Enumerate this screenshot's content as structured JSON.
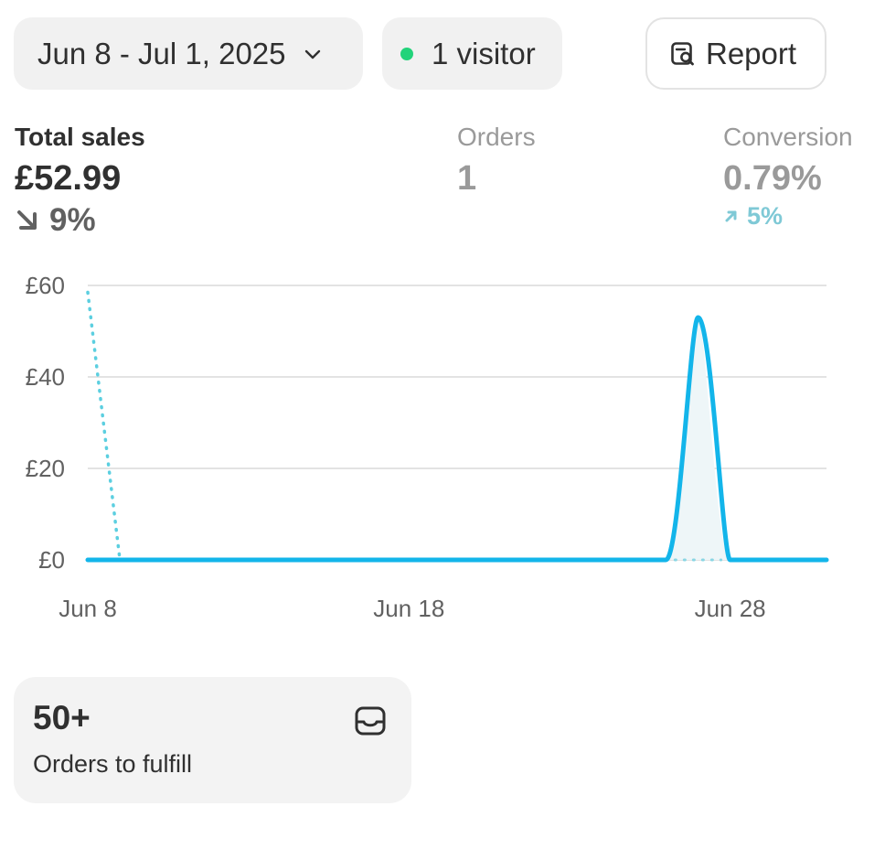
{
  "header": {
    "date_range": "Jun 8 - Jul 1, 2025",
    "visitors": "1 visitor",
    "report_label": "Report",
    "visitor_dot_color": "#22d37a"
  },
  "metrics": {
    "total_sales": {
      "label": "Total sales",
      "value": "£52.99",
      "delta": "9%",
      "direction": "down"
    },
    "orders": {
      "label": "Orders",
      "value": "1"
    },
    "conversion": {
      "label": "Conversion",
      "value": "0.79%",
      "delta": "5%",
      "direction": "up"
    }
  },
  "chart_data": {
    "type": "line",
    "y_ticks": [
      "£60",
      "£40",
      "£20",
      "£0"
    ],
    "x_ticks": [
      "Jun 8",
      "Jun 18",
      "Jun 28"
    ],
    "ylim": [
      0,
      60
    ],
    "grid": true,
    "series": [
      {
        "style": "solid",
        "color": "#13b5ea",
        "x": [
          "Jun 8",
          "Jun 9",
          "Jun 10",
          "Jun 11",
          "Jun 12",
          "Jun 13",
          "Jun 14",
          "Jun 15",
          "Jun 16",
          "Jun 17",
          "Jun 18",
          "Jun 19",
          "Jun 20",
          "Jun 21",
          "Jun 22",
          "Jun 23",
          "Jun 24",
          "Jun 25",
          "Jun 26",
          "Jun 27",
          "Jun 28",
          "Jun 29",
          "Jun 30",
          "Jul 1"
        ],
        "values": [
          0,
          0,
          0,
          0,
          0,
          0,
          0,
          0,
          0,
          0,
          0,
          0,
          0,
          0,
          0,
          0,
          0,
          0,
          0,
          52.99,
          0,
          0,
          0,
          0
        ]
      },
      {
        "style": "dotted",
        "color": "#5ccfe0",
        "x": [
          "Jun 8",
          "Jun 9"
        ],
        "values": [
          58.5,
          0
        ]
      }
    ]
  },
  "fulfill": {
    "count": "50+",
    "label": "Orders to fulfill"
  }
}
